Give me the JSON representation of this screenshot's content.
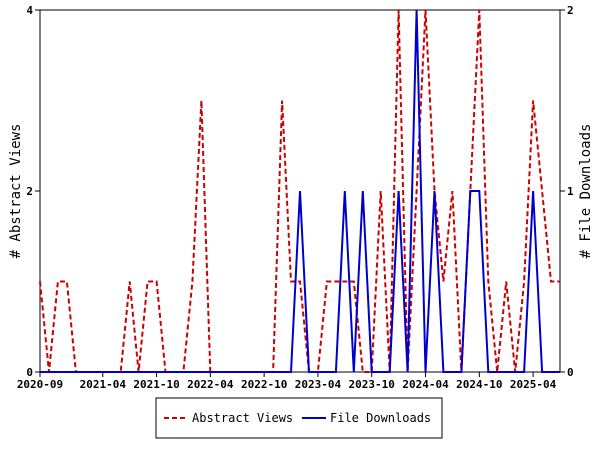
{
  "chart_data": {
    "type": "line",
    "ylabel_left": "# Abstract Views",
    "ylabel_right": "# File Downloads",
    "ylim_left": [
      0,
      4
    ],
    "ylim_right": [
      0,
      2
    ],
    "yticks_left": [
      "0",
      "2",
      "4"
    ],
    "yticks_right": [
      "0",
      "1",
      "2"
    ],
    "xticks": [
      "2020-09",
      "2021-04",
      "2021-10",
      "2022-04",
      "2022-10",
      "2023-04",
      "2023-10",
      "2024-04",
      "2024-10",
      "2025-04"
    ],
    "xtick_positions": [
      0,
      7,
      13,
      19,
      25,
      31,
      37,
      43,
      49,
      55
    ],
    "x_count": 59,
    "grid": false,
    "legend_position": "bottom",
    "series": [
      {
        "name": "Abstract Views",
        "axis": "left",
        "color": "#cc0000",
        "dash": "dashed",
        "values": [
          1,
          0,
          1,
          1,
          0,
          0,
          0,
          0,
          0,
          0,
          1,
          0,
          1,
          1,
          0,
          0,
          0,
          1,
          3,
          0,
          0,
          0,
          0,
          0,
          0,
          0,
          0,
          3,
          1,
          1,
          0,
          0,
          1,
          1,
          1,
          1,
          0,
          0,
          2,
          0,
          4,
          0,
          2,
          4,
          2,
          1,
          2,
          0,
          2,
          4,
          1,
          0,
          1,
          0,
          1,
          3,
          2,
          1,
          1
        ]
      },
      {
        "name": "File Downloads",
        "axis": "right",
        "color": "#0000cc",
        "dash": "solid",
        "values": [
          0,
          0,
          0,
          0,
          0,
          0,
          0,
          0,
          0,
          0,
          0,
          0,
          0,
          0,
          0,
          0,
          0,
          0,
          0,
          0,
          0,
          0,
          0,
          0,
          0,
          0,
          0,
          0,
          0,
          1,
          0,
          0,
          0,
          0,
          1,
          0,
          1,
          0,
          0,
          0,
          1,
          0,
          2,
          0,
          1,
          0,
          0,
          0,
          1,
          1,
          0,
          0,
          0,
          0,
          0,
          1,
          0,
          0,
          0
        ]
      }
    ]
  }
}
